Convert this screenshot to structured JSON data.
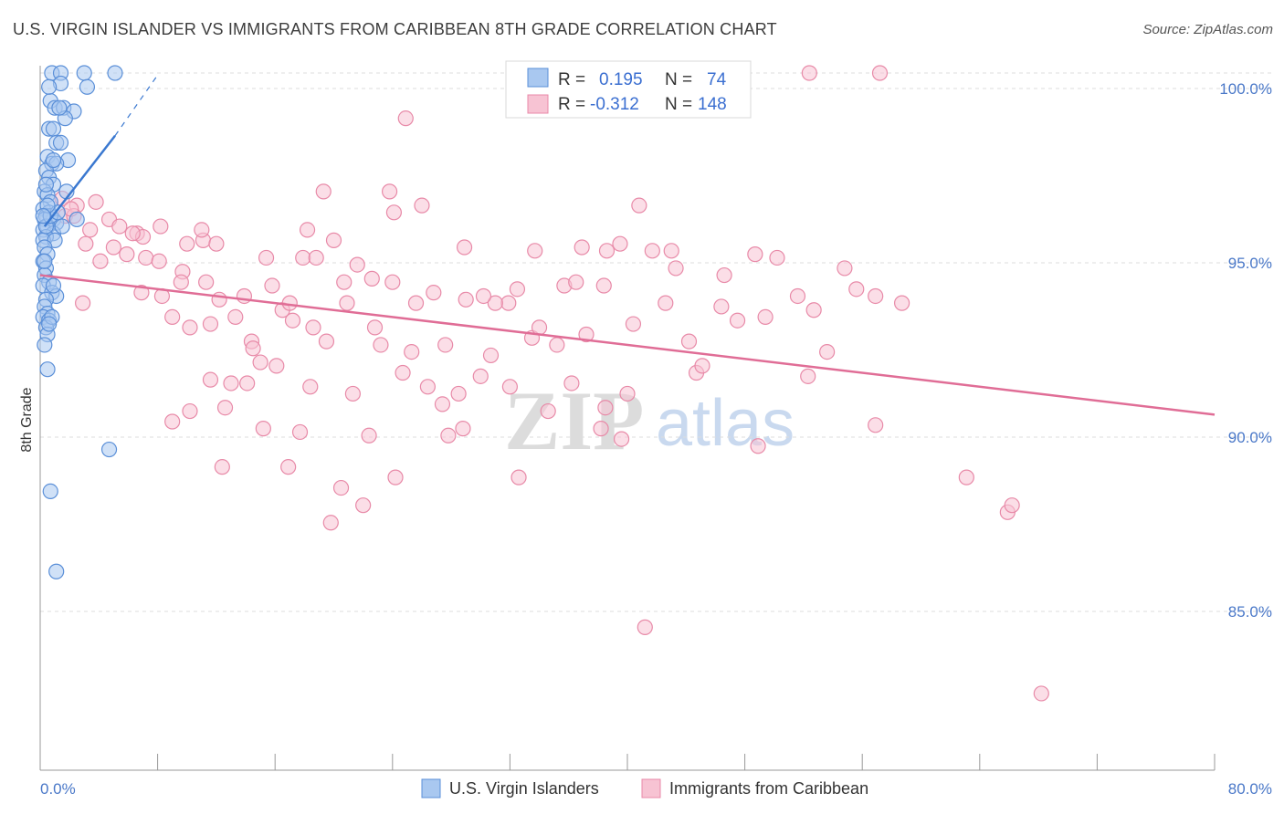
{
  "header": {
    "title": "U.S. VIRGIN ISLANDER VS IMMIGRANTS FROM CARIBBEAN 8TH GRADE CORRELATION CHART",
    "source": "Source: ZipAtlas.com"
  },
  "watermark": {
    "zip": "ZIP",
    "atlas": "atlas"
  },
  "legend": {
    "r_label": "R =",
    "n_label": "N =",
    "blue_r": "0.195",
    "blue_n": "74",
    "pink_r": "-0.312",
    "pink_n": "148"
  },
  "colors": {
    "blue_fill": "#a9c8f0",
    "blue_stroke": "#5a8fd8",
    "blue_line": "#3a78d0",
    "pink_fill": "#f7c3d3",
    "pink_stroke": "#e88aa8",
    "pink_line": "#e06d96",
    "grid": "#dddddd",
    "tick_label": "#4a78c8"
  },
  "chart_data": {
    "type": "scatter",
    "title": "U.S. VIRGIN ISLANDER VS IMMIGRANTS FROM CARIBBEAN 8TH GRADE CORRELATION CHART",
    "xlabel": "",
    "ylabel": "8th Grade",
    "xlim": [
      0,
      80
    ],
    "ylim": [
      80.0,
      100.0
    ],
    "x_tick_labels": [
      "0.0%",
      "80.0%"
    ],
    "y_ticks": [
      85,
      90,
      95,
      100
    ],
    "y_tick_labels": [
      "85.0%",
      "90.0%",
      "95.0%",
      "100.0%"
    ],
    "grid": true,
    "legend_position": "top-center",
    "series": [
      {
        "name": "U.S. Virgin Islanders",
        "color": "#5a8fd8",
        "R": 0.195,
        "N": 74,
        "trend": {
          "x": [
            0.3,
            5.1
          ],
          "y": [
            95.6,
            98.2
          ],
          "dashed_to": [
            8.1,
            100.0
          ]
        },
        "points": [
          [
            0.8,
            100.0
          ],
          [
            3.0,
            100.0
          ],
          [
            5.1,
            100.0
          ],
          [
            1.4,
            100.0
          ],
          [
            1.4,
            99.7
          ],
          [
            3.2,
            99.6
          ],
          [
            0.7,
            99.2
          ],
          [
            1.0,
            99.0
          ],
          [
            1.6,
            99.0
          ],
          [
            2.3,
            98.9
          ],
          [
            1.7,
            98.7
          ],
          [
            0.6,
            98.4
          ],
          [
            0.9,
            98.4
          ],
          [
            1.1,
            98.0
          ],
          [
            1.4,
            98.0
          ],
          [
            0.5,
            97.6
          ],
          [
            1.9,
            97.5
          ],
          [
            0.8,
            97.4
          ],
          [
            1.1,
            97.4
          ],
          [
            0.4,
            97.2
          ],
          [
            0.6,
            97.0
          ],
          [
            0.9,
            96.8
          ],
          [
            0.3,
            96.6
          ],
          [
            1.8,
            96.6
          ],
          [
            0.5,
            96.5
          ],
          [
            0.7,
            96.3
          ],
          [
            0.2,
            96.1
          ],
          [
            0.6,
            96.0
          ],
          [
            0.4,
            95.9
          ],
          [
            0.9,
            95.8
          ],
          [
            0.3,
            95.8
          ],
          [
            1.1,
            95.7
          ],
          [
            0.5,
            95.6
          ],
          [
            2.5,
            95.8
          ],
          [
            0.2,
            95.5
          ],
          [
            0.9,
            95.4
          ],
          [
            0.4,
            95.3
          ],
          [
            0.2,
            95.2
          ],
          [
            1.0,
            95.2
          ],
          [
            0.3,
            95.0
          ],
          [
            0.5,
            94.8
          ],
          [
            0.2,
            94.6
          ],
          [
            0.4,
            94.4
          ],
          [
            0.3,
            94.2
          ],
          [
            0.6,
            94.0
          ],
          [
            0.2,
            93.9
          ],
          [
            0.8,
            93.7
          ],
          [
            1.1,
            93.6
          ],
          [
            0.4,
            93.5
          ],
          [
            0.3,
            93.3
          ],
          [
            0.5,
            93.1
          ],
          [
            0.2,
            93.0
          ],
          [
            0.6,
            92.9
          ],
          [
            0.4,
            92.7
          ],
          [
            0.5,
            92.5
          ],
          [
            0.3,
            92.2
          ],
          [
            0.5,
            91.5
          ],
          [
            4.7,
            89.2
          ],
          [
            0.7,
            88.0
          ],
          [
            1.1,
            85.7
          ],
          [
            0.4,
            95.6
          ],
          [
            0.7,
            95.9
          ],
          [
            1.2,
            96.0
          ],
          [
            0.9,
            97.5
          ],
          [
            0.6,
            99.6
          ],
          [
            1.3,
            99.0
          ],
          [
            0.4,
            96.8
          ],
          [
            0.8,
            93.0
          ],
          [
            0.3,
            94.6
          ],
          [
            0.5,
            96.2
          ],
          [
            0.9,
            93.9
          ],
          [
            0.6,
            92.8
          ],
          [
            0.2,
            95.9
          ],
          [
            1.5,
            95.6
          ]
        ]
      },
      {
        "name": "Immigrants from Caribbean",
        "color": "#e88aa8",
        "R": -0.312,
        "N": 148,
        "trend": {
          "x": [
            0.0,
            80.0
          ],
          "y": [
            94.2,
            90.2
          ]
        },
        "points": [
          [
            52.4,
            100.0
          ],
          [
            57.2,
            100.0
          ],
          [
            24.9,
            98.7
          ],
          [
            40.8,
            96.2
          ],
          [
            19.3,
            96.6
          ],
          [
            23.8,
            96.6
          ],
          [
            24.1,
            96.0
          ],
          [
            26.0,
            96.2
          ],
          [
            2.5,
            96.2
          ],
          [
            1.7,
            95.9
          ],
          [
            4.7,
            95.8
          ],
          [
            6.6,
            95.4
          ],
          [
            5.4,
            95.6
          ],
          [
            8.2,
            95.6
          ],
          [
            10.0,
            95.1
          ],
          [
            11.1,
            95.2
          ],
          [
            15.4,
            94.7
          ],
          [
            17.9,
            94.7
          ],
          [
            18.8,
            94.7
          ],
          [
            21.6,
            94.5
          ],
          [
            28.9,
            95.0
          ],
          [
            33.7,
            94.9
          ],
          [
            36.9,
            95.0
          ],
          [
            38.6,
            94.9
          ],
          [
            41.7,
            94.9
          ],
          [
            48.7,
            94.8
          ],
          [
            50.2,
            94.7
          ],
          [
            43.3,
            94.4
          ],
          [
            46.6,
            94.2
          ],
          [
            54.8,
            94.4
          ],
          [
            4.1,
            94.6
          ],
          [
            5.9,
            94.8
          ],
          [
            7.2,
            94.7
          ],
          [
            8.1,
            94.6
          ],
          [
            9.7,
            94.3
          ],
          [
            11.3,
            94.0
          ],
          [
            13.9,
            93.6
          ],
          [
            15.8,
            93.9
          ],
          [
            16.5,
            93.2
          ],
          [
            20.7,
            94.0
          ],
          [
            22.6,
            94.1
          ],
          [
            26.8,
            93.7
          ],
          [
            31.9,
            93.4
          ],
          [
            32.5,
            93.8
          ],
          [
            35.7,
            93.9
          ],
          [
            38.4,
            93.9
          ],
          [
            42.6,
            93.4
          ],
          [
            46.4,
            93.3
          ],
          [
            49.4,
            93.0
          ],
          [
            52.7,
            93.2
          ],
          [
            56.9,
            93.6
          ],
          [
            55.6,
            93.8
          ],
          [
            58.7,
            93.4
          ],
          [
            2.9,
            93.4
          ],
          [
            6.9,
            93.7
          ],
          [
            9.0,
            93.0
          ],
          [
            10.2,
            92.7
          ],
          [
            11.6,
            92.8
          ],
          [
            13.3,
            93.0
          ],
          [
            14.4,
            92.3
          ],
          [
            17.2,
            92.9
          ],
          [
            18.6,
            92.7
          ],
          [
            20.9,
            93.4
          ],
          [
            22.8,
            92.7
          ],
          [
            23.2,
            92.2
          ],
          [
            25.3,
            92.0
          ],
          [
            27.6,
            92.2
          ],
          [
            30.7,
            91.9
          ],
          [
            33.5,
            92.4
          ],
          [
            35.2,
            92.2
          ],
          [
            40.4,
            92.8
          ],
          [
            44.2,
            92.3
          ],
          [
            15.0,
            91.7
          ],
          [
            16.1,
            91.6
          ],
          [
            13.0,
            91.1
          ],
          [
            11.6,
            91.2
          ],
          [
            14.1,
            91.1
          ],
          [
            18.4,
            91.0
          ],
          [
            21.3,
            90.8
          ],
          [
            24.7,
            91.4
          ],
          [
            26.4,
            91.0
          ],
          [
            28.5,
            90.8
          ],
          [
            30.0,
            91.3
          ],
          [
            32.0,
            91.0
          ],
          [
            34.6,
            90.3
          ],
          [
            38.5,
            90.4
          ],
          [
            44.7,
            91.4
          ],
          [
            52.3,
            91.3
          ],
          [
            10.2,
            90.3
          ],
          [
            12.6,
            90.4
          ],
          [
            9.0,
            90.0
          ],
          [
            15.2,
            89.8
          ],
          [
            17.7,
            89.7
          ],
          [
            28.8,
            89.8
          ],
          [
            27.8,
            89.6
          ],
          [
            38.2,
            89.8
          ],
          [
            39.6,
            89.5
          ],
          [
            56.9,
            89.9
          ],
          [
            48.9,
            89.3
          ],
          [
            12.4,
            88.7
          ],
          [
            16.9,
            88.7
          ],
          [
            20.5,
            88.1
          ],
          [
            24.2,
            88.4
          ],
          [
            32.6,
            88.4
          ],
          [
            22.0,
            87.6
          ],
          [
            63.1,
            88.4
          ],
          [
            65.9,
            87.4
          ],
          [
            66.2,
            87.6
          ],
          [
            19.8,
            87.1
          ],
          [
            41.2,
            84.1
          ],
          [
            68.2,
            82.2
          ],
          [
            3.4,
            95.5
          ],
          [
            3.8,
            96.3
          ],
          [
            2.3,
            95.9
          ],
          [
            1.5,
            96.4
          ],
          [
            2.1,
            96.1
          ],
          [
            7.0,
            95.3
          ],
          [
            5.0,
            95.0
          ],
          [
            12.0,
            95.1
          ],
          [
            18.2,
            95.5
          ],
          [
            20.0,
            95.2
          ],
          [
            25.6,
            93.4
          ],
          [
            36.5,
            94.0
          ],
          [
            47.5,
            92.9
          ],
          [
            53.6,
            92.0
          ],
          [
            29.0,
            93.5
          ],
          [
            31.0,
            93.4
          ],
          [
            34.0,
            92.7
          ],
          [
            37.2,
            92.5
          ],
          [
            14.5,
            92.1
          ],
          [
            19.5,
            92.3
          ],
          [
            8.3,
            93.6
          ],
          [
            12.2,
            93.5
          ],
          [
            6.3,
            95.4
          ],
          [
            3.1,
            95.1
          ],
          [
            45.1,
            91.6
          ],
          [
            40.0,
            90.8
          ],
          [
            36.2,
            91.1
          ],
          [
            27.4,
            90.5
          ],
          [
            22.4,
            89.6
          ],
          [
            51.6,
            93.6
          ],
          [
            43.0,
            94.9
          ],
          [
            39.5,
            95.1
          ],
          [
            30.2,
            93.6
          ],
          [
            24.0,
            94.0
          ],
          [
            17.0,
            93.4
          ],
          [
            9.6,
            94.0
          ],
          [
            11.0,
            95.5
          ]
        ]
      }
    ]
  },
  "bottom_legend": {
    "blue_label": "U.S. Virgin Islanders",
    "pink_label": "Immigrants from Caribbean"
  }
}
